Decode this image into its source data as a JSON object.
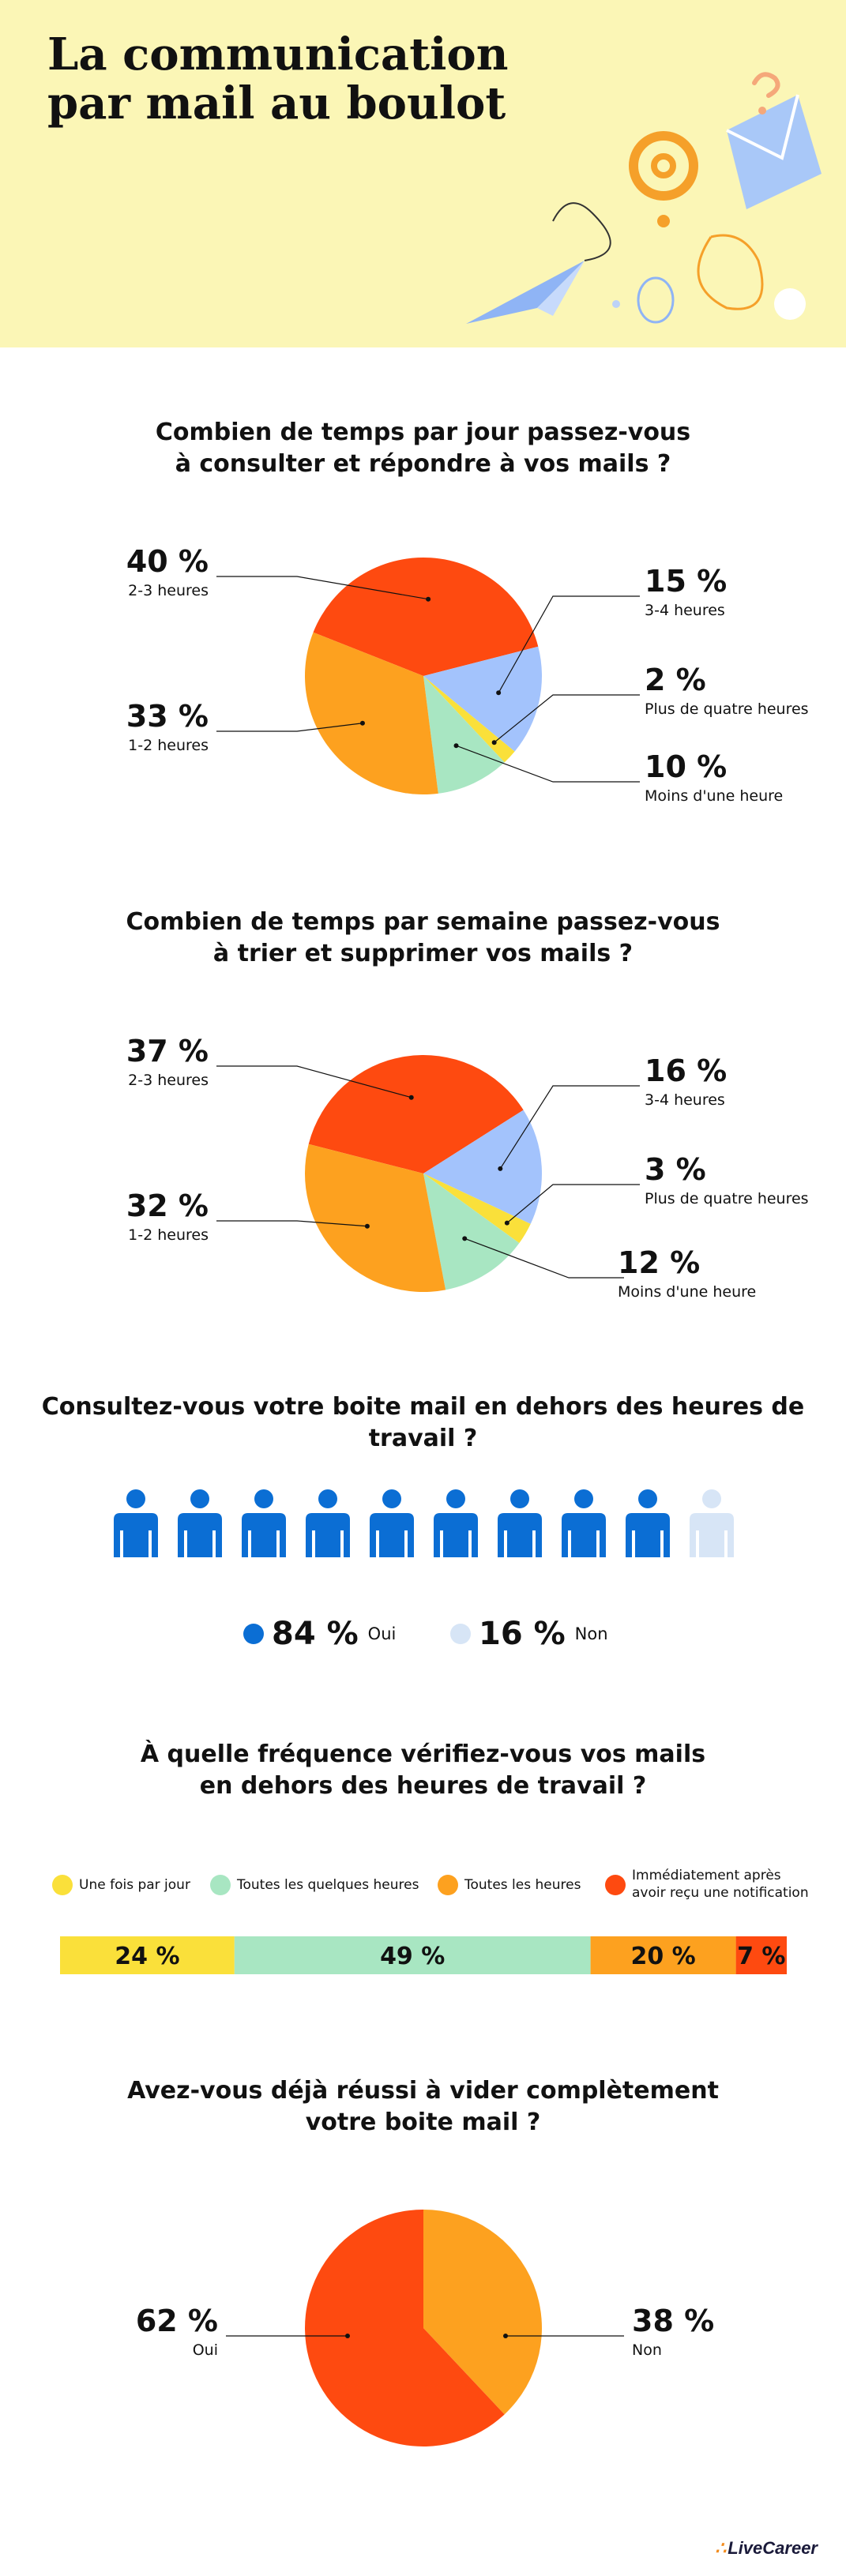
{
  "hero": {
    "title_line1": "La communication",
    "title_line2": "par mail au boulot"
  },
  "colors": {
    "red": "#fe4a10",
    "orange": "#fda11f",
    "blue": "#a3c3fc",
    "yellow": "#fae03a",
    "green": "#a8e6c2",
    "person_on": "#0b6ed4",
    "person_off": "#d7e5f6",
    "hero_bg": "#fbf6b6"
  },
  "chart_data": [
    {
      "type": "pie",
      "title_line1": "Combien de temps par jour passez-vous",
      "title_line2": "à consulter et répondre à vos mails ?",
      "slices": [
        {
          "label": "2-3 heures",
          "value": 40,
          "pct": "40 %",
          "color": "#fe4a10"
        },
        {
          "label": "3-4 heures",
          "value": 15,
          "pct": "15 %",
          "color": "#a3c3fc"
        },
        {
          "label": "Plus de quatre heures",
          "value": 2,
          "pct": "2 %",
          "color": "#fae03a"
        },
        {
          "label": "Moins d'une heure",
          "value": 10,
          "pct": "10 %",
          "color": "#a8e6c2"
        },
        {
          "label": "1-2 heures",
          "value": 33,
          "pct": "33 %",
          "color": "#fda11f"
        }
      ]
    },
    {
      "type": "pie",
      "title_line1": "Combien de temps par semaine passez-vous",
      "title_line2": "à trier et supprimer vos mails ?",
      "slices": [
        {
          "label": "2-3 heures",
          "value": 37,
          "pct": "37 %",
          "color": "#fe4a10"
        },
        {
          "label": "3-4 heures",
          "value": 16,
          "pct": "16 %",
          "color": "#a3c3fc"
        },
        {
          "label": "Plus de quatre heures",
          "value": 3,
          "pct": "3 %",
          "color": "#fae03a"
        },
        {
          "label": "Moins d'une heure",
          "value": 12,
          "pct": "12 %",
          "color": "#a8e6c2"
        },
        {
          "label": "1-2 heures",
          "value": 32,
          "pct": "32 %",
          "color": "#fda11f"
        }
      ]
    },
    {
      "type": "pictogram",
      "title": "Consultez-vous votre boite mail en dehors des heures de travail ?",
      "total_icons": 10,
      "filled_icons": 9,
      "yes": {
        "pct": "84 %",
        "label": "Oui",
        "value": 84
      },
      "no": {
        "pct": "16 %",
        "label": "Non",
        "value": 16
      }
    },
    {
      "type": "stacked-bar",
      "title_line1": "À quelle fréquence vérifiez-vous vos mails",
      "title_line2": "en dehors des heures de travail ?",
      "segments": [
        {
          "label": "Une fois par jour",
          "value": 24,
          "pct": "24 %",
          "color": "#fae03a"
        },
        {
          "label": "Toutes les quelques heures",
          "value": 49,
          "pct": "49 %",
          "color": "#a8e6c2"
        },
        {
          "label": "Toutes les heures",
          "value": 20,
          "pct": "20 %",
          "color": "#fda11f"
        },
        {
          "label_line1": "Immédiatement après",
          "label_line2": "avoir reçu une notification",
          "value": 7,
          "pct": "7 %",
          "color": "#fe4a10"
        }
      ]
    },
    {
      "type": "pie",
      "title_line1": "Avez-vous déjà réussi à vider complètement",
      "title_line2": "votre boite mail ?",
      "slices": [
        {
          "label": "Non",
          "value": 38,
          "pct": "38 %",
          "color": "#fda11f"
        },
        {
          "label": "Oui",
          "value": 62,
          "pct": "62 %",
          "color": "#fe4a10"
        }
      ]
    }
  ],
  "brand": {
    "name": "LiveCareer"
  }
}
